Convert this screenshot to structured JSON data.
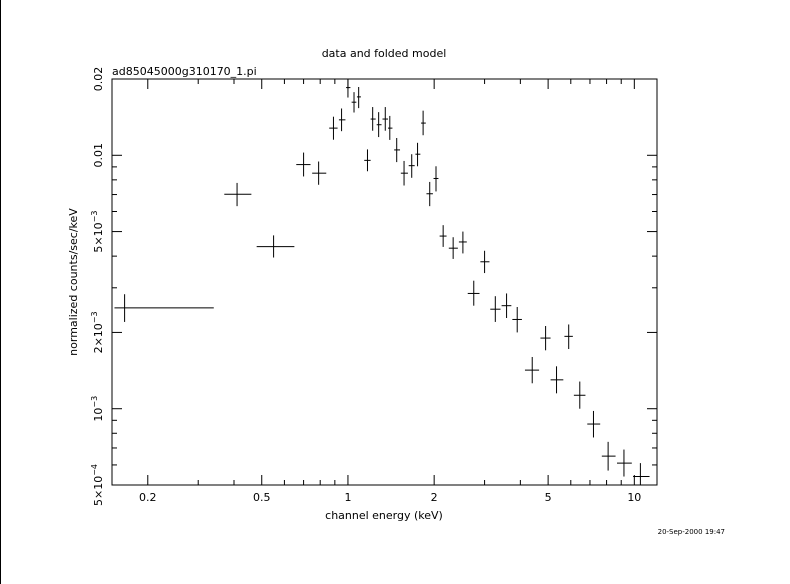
{
  "chart_data": {
    "type": "scatter",
    "title": "data and folded model",
    "subtitle": "ad85045000g310170_1.pi",
    "xlabel": "channel energy (keV)",
    "ylabel": "normalized counts/sec/keV",
    "xscale": "log",
    "yscale": "log",
    "xlim": [
      0.15,
      12
    ],
    "ylim": [
      0.0005,
      0.02
    ],
    "x_ticks": [
      {
        "value": 0.2,
        "label": "0.2"
      },
      {
        "value": 0.5,
        "label": "0.5"
      },
      {
        "value": 1,
        "label": "1"
      },
      {
        "value": 2,
        "label": "2"
      },
      {
        "value": 5,
        "label": "5"
      },
      {
        "value": 10,
        "label": "10"
      }
    ],
    "y_ticks": [
      {
        "value": 0.0005,
        "base": "5×10",
        "exp": "−4"
      },
      {
        "value": 0.001,
        "base": "10",
        "exp": "−3"
      },
      {
        "value": 0.002,
        "base": "2×10",
        "exp": "−3"
      },
      {
        "value": 0.005,
        "base": "5×10",
        "exp": "−3"
      },
      {
        "value": 0.01,
        "base": "0.01",
        "exp": ""
      },
      {
        "value": 0.02,
        "base": "0.02",
        "exp": ""
      }
    ],
    "grid": false,
    "timestamp": "20-Sep-2000 19:47",
    "points": [
      {
        "x": 0.166,
        "xlo": 0.153,
        "xhi": 0.34,
        "y": 0.0025,
        "ylo": 0.0022,
        "yhi": 0.00283
      },
      {
        "x": 0.41,
        "xlo": 0.37,
        "xhi": 0.46,
        "y": 0.00702,
        "ylo": 0.0063,
        "yhi": 0.00778
      },
      {
        "x": 0.55,
        "xlo": 0.48,
        "xhi": 0.65,
        "y": 0.00436,
        "ylo": 0.00395,
        "yhi": 0.00483
      },
      {
        "x": 0.7,
        "xlo": 0.66,
        "xhi": 0.74,
        "y": 0.00919,
        "ylo": 0.00825,
        "yhi": 0.01025
      },
      {
        "x": 0.79,
        "xlo": 0.75,
        "xhi": 0.84,
        "y": 0.0085,
        "ylo": 0.00765,
        "yhi": 0.00945
      },
      {
        "x": 0.89,
        "xlo": 0.86,
        "xhi": 0.92,
        "y": 0.0128,
        "ylo": 0.01152,
        "yhi": 0.0142
      },
      {
        "x": 0.95,
        "xlo": 0.93,
        "xhi": 0.98,
        "y": 0.0138,
        "ylo": 0.01245,
        "yhi": 0.0153
      },
      {
        "x": 1.0,
        "xlo": 0.985,
        "xhi": 1.02,
        "y": 0.0185,
        "ylo": 0.0169,
        "yhi": 0.0199
      },
      {
        "x": 1.05,
        "xlo": 1.03,
        "xhi": 1.07,
        "y": 0.0162,
        "ylo": 0.01475,
        "yhi": 0.01775
      },
      {
        "x": 1.09,
        "xlo": 1.075,
        "xhi": 1.11,
        "y": 0.017,
        "ylo": 0.01535,
        "yhi": 0.0186
      },
      {
        "x": 1.17,
        "xlo": 1.14,
        "xhi": 1.2,
        "y": 0.00955,
        "ylo": 0.00865,
        "yhi": 0.01055
      },
      {
        "x": 1.22,
        "xlo": 1.2,
        "xhi": 1.25,
        "y": 0.0139,
        "ylo": 0.0125,
        "yhi": 0.0155
      },
      {
        "x": 1.28,
        "xlo": 1.26,
        "xhi": 1.31,
        "y": 0.0132,
        "ylo": 0.0118,
        "yhi": 0.0148
      },
      {
        "x": 1.35,
        "xlo": 1.32,
        "xhi": 1.38,
        "y": 0.0139,
        "ylo": 0.0125,
        "yhi": 0.0155
      },
      {
        "x": 1.4,
        "xlo": 1.38,
        "xhi": 1.43,
        "y": 0.0128,
        "ylo": 0.0115,
        "yhi": 0.0143
      },
      {
        "x": 1.48,
        "xlo": 1.45,
        "xhi": 1.52,
        "y": 0.0105,
        "ylo": 0.0094,
        "yhi": 0.0117
      },
      {
        "x": 1.57,
        "xlo": 1.53,
        "xhi": 1.62,
        "y": 0.0085,
        "ylo": 0.0076,
        "yhi": 0.0095
      },
      {
        "x": 1.67,
        "xlo": 1.63,
        "xhi": 1.71,
        "y": 0.0091,
        "ylo": 0.00815,
        "yhi": 0.0101
      },
      {
        "x": 1.75,
        "xlo": 1.72,
        "xhi": 1.79,
        "y": 0.0101,
        "ylo": 0.00905,
        "yhi": 0.0112
      },
      {
        "x": 1.83,
        "xlo": 1.8,
        "xhi": 1.87,
        "y": 0.0134,
        "ylo": 0.012,
        "yhi": 0.015
      },
      {
        "x": 1.93,
        "xlo": 1.88,
        "xhi": 1.98,
        "y": 0.00705,
        "ylo": 0.0063,
        "yhi": 0.00785
      },
      {
        "x": 2.03,
        "xlo": 1.99,
        "xhi": 2.07,
        "y": 0.0081,
        "ylo": 0.0072,
        "yhi": 0.00905
      },
      {
        "x": 2.15,
        "xlo": 2.09,
        "xhi": 2.21,
        "y": 0.0048,
        "ylo": 0.00435,
        "yhi": 0.0053
      },
      {
        "x": 2.33,
        "xlo": 2.25,
        "xhi": 2.42,
        "y": 0.0043,
        "ylo": 0.0039,
        "yhi": 0.00475
      },
      {
        "x": 2.52,
        "xlo": 2.44,
        "xhi": 2.6,
        "y": 0.00455,
        "ylo": 0.0041,
        "yhi": 0.005
      },
      {
        "x": 2.75,
        "xlo": 2.62,
        "xhi": 2.88,
        "y": 0.00285,
        "ylo": 0.00255,
        "yhi": 0.0032
      },
      {
        "x": 3.0,
        "xlo": 2.9,
        "xhi": 3.12,
        "y": 0.0038,
        "ylo": 0.00343,
        "yhi": 0.0042
      },
      {
        "x": 3.27,
        "xlo": 3.14,
        "xhi": 3.41,
        "y": 0.00247,
        "ylo": 0.0022,
        "yhi": 0.00278
      },
      {
        "x": 3.58,
        "xlo": 3.44,
        "xhi": 3.72,
        "y": 0.00255,
        "ylo": 0.00228,
        "yhi": 0.00285
      },
      {
        "x": 3.9,
        "xlo": 3.75,
        "xhi": 4.05,
        "y": 0.00225,
        "ylo": 0.002,
        "yhi": 0.00252
      },
      {
        "x": 4.4,
        "xlo": 4.15,
        "xhi": 4.65,
        "y": 0.00142,
        "ylo": 0.00126,
        "yhi": 0.0016
      },
      {
        "x": 4.9,
        "xlo": 4.7,
        "xhi": 5.1,
        "y": 0.0019,
        "ylo": 0.0017,
        "yhi": 0.00212
      },
      {
        "x": 5.35,
        "xlo": 5.1,
        "xhi": 5.65,
        "y": 0.0013,
        "ylo": 0.00115,
        "yhi": 0.00147
      },
      {
        "x": 5.9,
        "xlo": 5.7,
        "xhi": 6.1,
        "y": 0.00193,
        "ylo": 0.00172,
        "yhi": 0.00215
      },
      {
        "x": 6.45,
        "xlo": 6.15,
        "xhi": 6.75,
        "y": 0.00113,
        "ylo": 0.001,
        "yhi": 0.00128
      },
      {
        "x": 7.2,
        "xlo": 6.85,
        "xhi": 7.6,
        "y": 0.00087,
        "ylo": 0.00077,
        "yhi": 0.00098
      },
      {
        "x": 8.1,
        "xlo": 7.7,
        "xhi": 8.6,
        "y": 0.00065,
        "ylo": 0.00057,
        "yhi": 0.00074
      },
      {
        "x": 9.2,
        "xlo": 8.7,
        "xhi": 9.8,
        "y": 0.00061,
        "ylo": 0.00054,
        "yhi": 0.00069
      },
      {
        "x": 10.5,
        "xlo": 9.9,
        "xhi": 11.3,
        "y": 0.00054,
        "ylo": 0.00047,
        "yhi": 0.00061
      }
    ]
  }
}
